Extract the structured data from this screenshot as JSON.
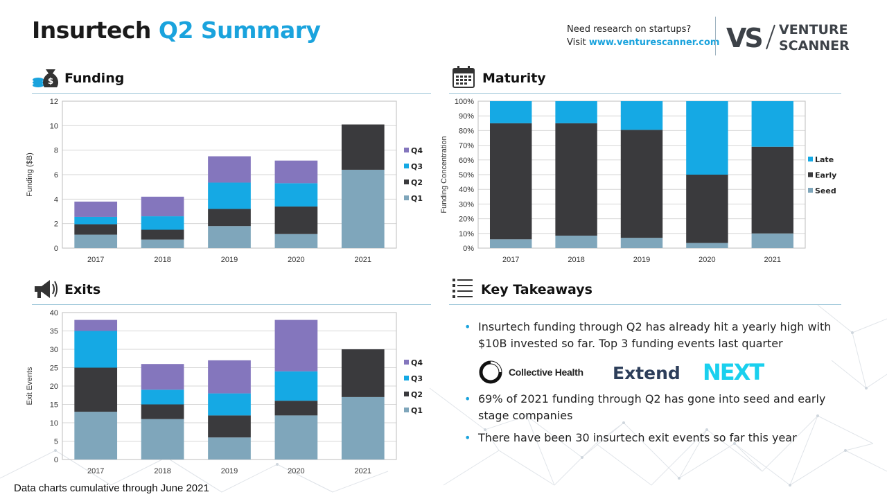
{
  "header": {
    "title_part1": "Insurtech",
    "title_part2": "Q2 Summary",
    "promo_line1": "Need research on startups?",
    "promo_visit": "Visit",
    "promo_link": "www.venturescanner.com",
    "logo_mark": "VS",
    "logo_line1": "VENTURE",
    "logo_line2": "SCANNER"
  },
  "sections": {
    "funding": "Funding",
    "maturity": "Maturity",
    "exits": "Exits",
    "takeaways": "Key Takeaways"
  },
  "colors": {
    "q1": "#7fa6bb",
    "q2": "#3a3a3d",
    "q3": "#15a9e4",
    "q4": "#8476bd",
    "accent": "#1aa3dd",
    "seed": "#7fa6bb",
    "early": "#3a3a3d",
    "late": "#15a9e4"
  },
  "chart_data": [
    {
      "id": "funding",
      "type": "bar",
      "stacked": true,
      "categories": [
        "2017",
        "2018",
        "2019",
        "2020",
        "2021"
      ],
      "series": [
        {
          "name": "Q1",
          "values": [
            1.1,
            0.7,
            1.8,
            1.15,
            6.4
          ]
        },
        {
          "name": "Q2",
          "values": [
            0.85,
            0.8,
            1.4,
            2.25,
            3.7
          ]
        },
        {
          "name": "Q3",
          "values": [
            0.6,
            1.1,
            2.15,
            1.9,
            0
          ]
        },
        {
          "name": "Q4",
          "values": [
            1.25,
            1.6,
            2.15,
            1.85,
            0
          ]
        }
      ],
      "ylabel": "Funding ($B)",
      "ylim": [
        0,
        12
      ],
      "yticks": [
        "0",
        "2",
        "4",
        "6",
        "8",
        "10",
        "12"
      ],
      "grid": true,
      "legend": "right"
    },
    {
      "id": "maturity",
      "type": "bar",
      "stacked": true,
      "categories": [
        "2017",
        "2018",
        "2019",
        "2020",
        "2021"
      ],
      "series": [
        {
          "name": "Seed",
          "values": [
            6,
            8.5,
            7,
            3.5,
            10
          ]
        },
        {
          "name": "Early",
          "values": [
            79,
            76.5,
            73.5,
            46.5,
            59
          ]
        },
        {
          "name": "Late",
          "values": [
            15,
            15,
            19.5,
            50,
            31
          ]
        }
      ],
      "ylabel": "Funding Concentration",
      "ylim": [
        0,
        100
      ],
      "yticks": [
        "0%",
        "10%",
        "20%",
        "30%",
        "40%",
        "50%",
        "60%",
        "70%",
        "80%",
        "90%",
        "100%"
      ],
      "grid": true,
      "legend": "right"
    },
    {
      "id": "exits",
      "type": "bar",
      "stacked": true,
      "categories": [
        "2017",
        "2018",
        "2019",
        "2020",
        "2021"
      ],
      "series": [
        {
          "name": "Q1",
          "values": [
            13,
            11,
            6,
            12,
            17
          ]
        },
        {
          "name": "Q2",
          "values": [
            12,
            4,
            6,
            4,
            13
          ]
        },
        {
          "name": "Q3",
          "values": [
            10,
            4,
            6,
            8,
            0
          ]
        },
        {
          "name": "Q4",
          "values": [
            3,
            7,
            9,
            14,
            0
          ]
        }
      ],
      "ylabel": "Exit Events",
      "ylim": [
        0,
        40
      ],
      "yticks": [
        "0",
        "5",
        "10",
        "15",
        "20",
        "25",
        "30",
        "35",
        "40"
      ],
      "grid": true,
      "legend": "right"
    }
  ],
  "takeaways": {
    "bullet": "•",
    "items": [
      "Insurtech funding through Q2 has already hit a yearly high with $10B invested so far. Top 3 funding events last quarter",
      "69% of 2021 funding through Q2 has gone into seed and early stage companies",
      "There have been 30 insurtech exit events so far this year"
    ],
    "logos": [
      "Collective Health",
      "Extend",
      "NEXT"
    ]
  },
  "footnote": "Data charts cumulative through June 2021"
}
